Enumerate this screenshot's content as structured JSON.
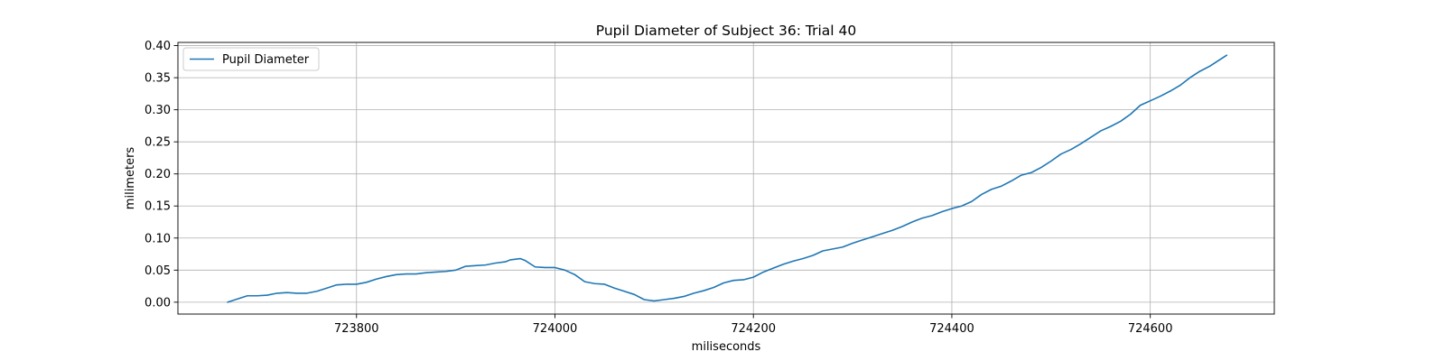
{
  "chart_data": {
    "type": "line",
    "title": "Pupil Diameter of Subject 36: Trial 40",
    "xlabel": "miliseconds",
    "ylabel": "milimeters",
    "xlim": [
      723620,
      724725
    ],
    "ylim": [
      -0.0185,
      0.405
    ],
    "xticks": [
      723800,
      724000,
      724200,
      724400,
      724600
    ],
    "xtick_labels": [
      "723800",
      "724000",
      "724200",
      "724400",
      "724600"
    ],
    "yticks": [
      0.0,
      0.05,
      0.1,
      0.15,
      0.2,
      0.25,
      0.3,
      0.35,
      0.4
    ],
    "ytick_labels": [
      "0.00",
      "0.05",
      "0.10",
      "0.15",
      "0.20",
      "0.25",
      "0.30",
      "0.35",
      "0.40"
    ],
    "grid": true,
    "legend_position": "upper-left",
    "series": [
      {
        "name": "Pupil Diameter",
        "color": "#1f77b4",
        "x": [
          723670,
          723680,
          723690,
          723700,
          723710,
          723720,
          723730,
          723740,
          723750,
          723760,
          723770,
          723780,
          723790,
          723800,
          723810,
          723820,
          723830,
          723840,
          723850,
          723860,
          723870,
          723880,
          723890,
          723900,
          723910,
          723920,
          723930,
          723940,
          723950,
          723955,
          723965,
          723970,
          723980,
          723990,
          724000,
          724010,
          724020,
          724030,
          724040,
          724050,
          724060,
          724070,
          724080,
          724090,
          724100,
          724110,
          724120,
          724130,
          724140,
          724150,
          724160,
          724170,
          724180,
          724190,
          724200,
          724210,
          724220,
          724230,
          724240,
          724250,
          724260,
          724270,
          724280,
          724290,
          724300,
          724310,
          724320,
          724330,
          724340,
          724350,
          724360,
          724370,
          724380,
          724390,
          724400,
          724410,
          724420,
          724430,
          724440,
          724450,
          724460,
          724470,
          724480,
          724490,
          724500,
          724510,
          724520,
          724530,
          724540,
          724550,
          724560,
          724570,
          724580,
          724590,
          724600,
          724610,
          724620,
          724630,
          724640,
          724650,
          724660,
          724670,
          724677
        ],
        "y": [
          0.0,
          0.005,
          0.01,
          0.01,
          0.011,
          0.014,
          0.015,
          0.014,
          0.014,
          0.017,
          0.022,
          0.027,
          0.028,
          0.028,
          0.031,
          0.036,
          0.04,
          0.043,
          0.044,
          0.044,
          0.046,
          0.047,
          0.048,
          0.05,
          0.056,
          0.057,
          0.058,
          0.061,
          0.063,
          0.066,
          0.068,
          0.065,
          0.055,
          0.054,
          0.054,
          0.05,
          0.043,
          0.032,
          0.029,
          0.028,
          0.022,
          0.017,
          0.012,
          0.004,
          0.002,
          0.004,
          0.006,
          0.009,
          0.014,
          0.018,
          0.023,
          0.03,
          0.034,
          0.035,
          0.039,
          0.047,
          0.053,
          0.059,
          0.064,
          0.068,
          0.073,
          0.08,
          0.083,
          0.086,
          0.092,
          0.097,
          0.102,
          0.107,
          0.112,
          0.118,
          0.125,
          0.131,
          0.135,
          0.141,
          0.146,
          0.15,
          0.157,
          0.168,
          0.176,
          0.181,
          0.189,
          0.198,
          0.202,
          0.21,
          0.22,
          0.231,
          0.238,
          0.247,
          0.257,
          0.267,
          0.274,
          0.282,
          0.293,
          0.307,
          0.314,
          0.321,
          0.329,
          0.338,
          0.35,
          0.36,
          0.368,
          0.378,
          0.385
        ]
      }
    ]
  }
}
